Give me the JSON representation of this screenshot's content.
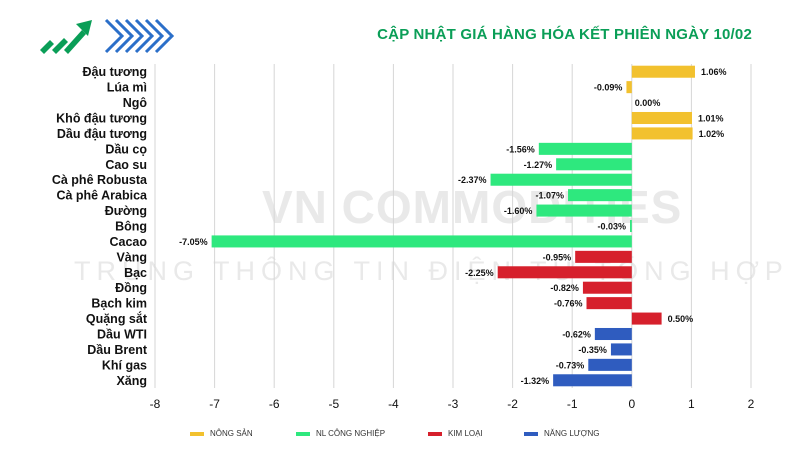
{
  "title": "CẬP NHẬT GIÁ HÀNG HÓA KẾT PHIÊN NGÀY 10/02",
  "watermark": {
    "line1": "VN COMMODITIES",
    "line2": "TRUNG THÔNG TIN ĐIỆN TỬ TỔNG HỢP"
  },
  "colors": {
    "nong_san": "#f2c12e",
    "nl_cong_nghiep": "#2ee87e",
    "kim_loai": "#d6202c",
    "nang_luong": "#2f5cbf",
    "title": "#0a9e57"
  },
  "chart_data": {
    "type": "bar",
    "orientation": "horizontal",
    "title": "CẬP NHẬT GIÁ HÀNG HÓA KẾT PHIÊN NGÀY 10/02",
    "xlabel": "",
    "ylabel": "",
    "xlim": [
      -8,
      2
    ],
    "xticks": [
      -8,
      -7,
      -6,
      -5,
      -4,
      -3,
      -2,
      -1,
      0,
      1,
      2
    ],
    "grid": "vertical",
    "legend_position": "bottom",
    "groups": [
      {
        "key": "nong_san",
        "name": "NÔNG SẢN"
      },
      {
        "key": "nl_cong_nghiep",
        "name": "NL CÔNG NGHIỆP"
      },
      {
        "key": "kim_loai",
        "name": "KIM LOẠI"
      },
      {
        "key": "nang_luong",
        "name": "NĂNG LƯỢNG"
      }
    ],
    "items": [
      {
        "name": "Đậu tương",
        "value": 1.06,
        "label": "1.06%",
        "group": "nong_san"
      },
      {
        "name": "Lúa mì",
        "value": -0.09,
        "label": "-0.09%",
        "group": "nong_san"
      },
      {
        "name": "Ngô",
        "value": 0.0,
        "label": "0.00%",
        "group": "nong_san"
      },
      {
        "name": "Khô đậu tương",
        "value": 1.01,
        "label": "1.01%",
        "group": "nong_san"
      },
      {
        "name": "Dầu đậu tương",
        "value": 1.02,
        "label": "1.02%",
        "group": "nong_san"
      },
      {
        "name": "Dầu cọ",
        "value": -1.56,
        "label": "-1.56%",
        "group": "nl_cong_nghiep"
      },
      {
        "name": "Cao su",
        "value": -1.27,
        "label": "-1.27%",
        "group": "nl_cong_nghiep"
      },
      {
        "name": "Cà phê Robusta",
        "value": -2.37,
        "label": "-2.37%",
        "group": "nl_cong_nghiep"
      },
      {
        "name": "Cà phê Arabica",
        "value": -1.07,
        "label": "-1.07%",
        "group": "nl_cong_nghiep"
      },
      {
        "name": "Đường",
        "value": -1.6,
        "label": "-1.60%",
        "group": "nl_cong_nghiep"
      },
      {
        "name": "Bông",
        "value": -0.03,
        "label": "-0.03%",
        "group": "nl_cong_nghiep"
      },
      {
        "name": "Cacao",
        "value": -7.05,
        "label": "-7.05%",
        "group": "nl_cong_nghiep"
      },
      {
        "name": "Vàng",
        "value": -0.95,
        "label": "-0.95%",
        "group": "kim_loai"
      },
      {
        "name": "Bạc",
        "value": -2.25,
        "label": "-2.25%",
        "group": "kim_loai"
      },
      {
        "name": "Đồng",
        "value": -0.82,
        "label": "-0.82%",
        "group": "kim_loai"
      },
      {
        "name": "Bạch kim",
        "value": -0.76,
        "label": "-0.76%",
        "group": "kim_loai"
      },
      {
        "name": "Quặng sắt",
        "value": 0.5,
        "label": "0.50%",
        "group": "kim_loai"
      },
      {
        "name": "Dầu WTI",
        "value": -0.62,
        "label": "-0.62%",
        "group": "nang_luong"
      },
      {
        "name": "Dầu Brent",
        "value": -0.35,
        "label": "-0.35%",
        "group": "nang_luong"
      },
      {
        "name": "Khí gas",
        "value": -0.73,
        "label": "-0.73%",
        "group": "nang_luong"
      },
      {
        "name": "Xăng",
        "value": -1.32,
        "label": "-1.32%",
        "group": "nang_luong"
      }
    ]
  }
}
